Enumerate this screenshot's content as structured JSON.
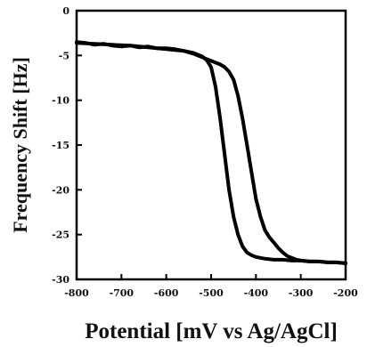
{
  "chart_data": {
    "type": "line",
    "title": "",
    "xlabel": "Potential [mV vs Ag/AgCl]",
    "ylabel": "Frequency Shift [Hz]",
    "xlim": [
      -800,
      -200
    ],
    "ylim": [
      -30,
      0
    ],
    "xticks": [
      -800,
      -700,
      -600,
      -500,
      -400,
      -300,
      -200
    ],
    "yticks": [
      0,
      -5,
      -10,
      -15,
      -20,
      -25,
      -30
    ],
    "xtick_labels": [
      "-800",
      "-700",
      "-600",
      "-500",
      "-400",
      "-300",
      "-200"
    ],
    "ytick_labels": [
      "0",
      "-5",
      "-10",
      "-15",
      "-20",
      "-25",
      "-30"
    ],
    "grid": false,
    "legend": false,
    "line_color": "#000000",
    "series": [
      {
        "x": [
          -800,
          -780,
          -760,
          -740,
          -720,
          -700,
          -680,
          -660,
          -640,
          -620,
          -600,
          -580,
          -560,
          -540,
          -520,
          -510,
          -500,
          -490,
          -480,
          -470,
          -460,
          -450,
          -440,
          -430,
          -420,
          -410,
          -400,
          -390,
          -380,
          -360,
          -340,
          -320,
          -300,
          -280,
          -260,
          -240,
          -220,
          -200
        ],
        "y": [
          -3.5,
          -3.6,
          -3.8,
          -3.7,
          -3.9,
          -4.0,
          -3.9,
          -4.1,
          -4.0,
          -4.2,
          -4.2,
          -4.3,
          -4.5,
          -4.7,
          -5.1,
          -5.5,
          -6.3,
          -8.5,
          -12,
          -16,
          -20,
          -23,
          -25,
          -26.3,
          -27,
          -27.3,
          -27.5,
          -27.6,
          -27.7,
          -27.8,
          -27.8,
          -27.9,
          -27.9,
          -28.0,
          -28.0,
          -28.1,
          -28.1,
          -28.2
        ]
      },
      {
        "x": [
          -800,
          -760,
          -720,
          -680,
          -640,
          -600,
          -560,
          -540,
          -520,
          -500,
          -480,
          -470,
          -460,
          -450,
          -440,
          -430,
          -420,
          -410,
          -400,
          -390,
          -380,
          -370,
          -360,
          -350,
          -340,
          -330,
          -320,
          -310,
          -300,
          -280,
          -260,
          -240,
          -220,
          -200
        ],
        "y": [
          -3.6,
          -3.7,
          -3.8,
          -3.9,
          -4.1,
          -4.3,
          -4.5,
          -4.8,
          -5.2,
          -5.6,
          -6.0,
          -6.3,
          -6.8,
          -7.7,
          -9.5,
          -12,
          -15,
          -18,
          -21,
          -23,
          -24.5,
          -25.3,
          -25.9,
          -26.5,
          -27.0,
          -27.4,
          -27.6,
          -27.8,
          -27.9,
          -28.0,
          -28.0,
          -28.1,
          -28.1,
          -28.2
        ]
      }
    ]
  }
}
